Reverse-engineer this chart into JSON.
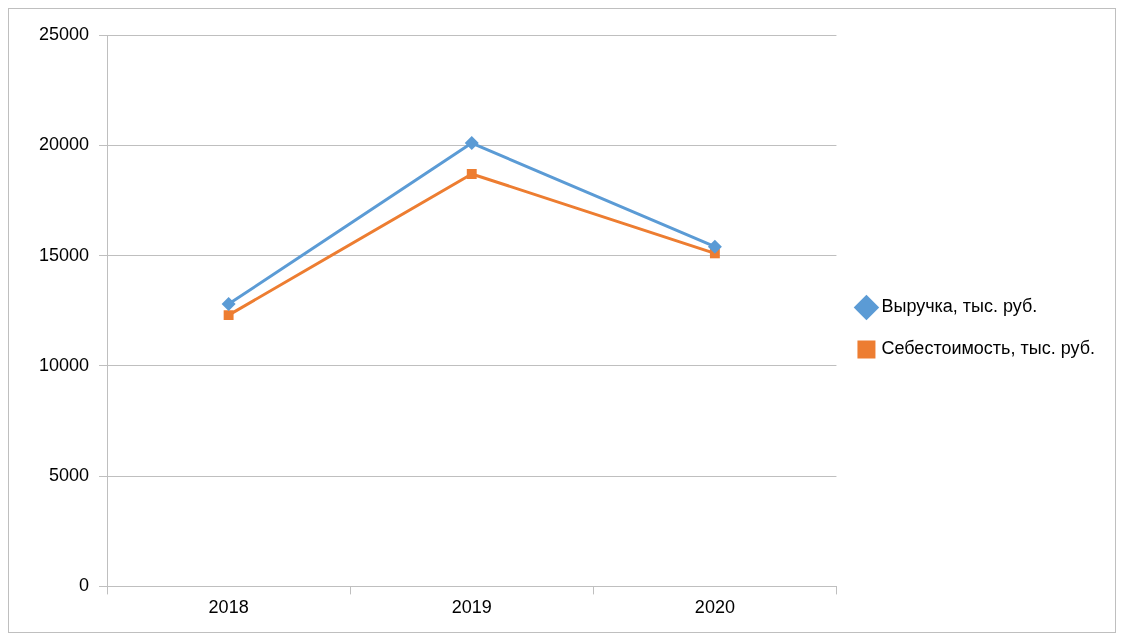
{
  "chart_data": {
    "type": "line",
    "categories": [
      "2018",
      "2019",
      "2020"
    ],
    "series": [
      {
        "name": "Выручка, тыс. руб.",
        "color": "#5b9bd5",
        "values": [
          12800,
          20100,
          15400
        ],
        "marker": "diamond"
      },
      {
        "name": "Себестоимость, тыс. руб.",
        "color": "#ed7d31",
        "values": [
          12300,
          18700,
          15100
        ],
        "marker": "square"
      }
    ],
    "ylim": [
      0,
      25000
    ],
    "yticks": [
      0,
      5000,
      10000,
      15000,
      20000,
      25000
    ],
    "grid": "y",
    "legend": "right",
    "line_style": "solid"
  }
}
